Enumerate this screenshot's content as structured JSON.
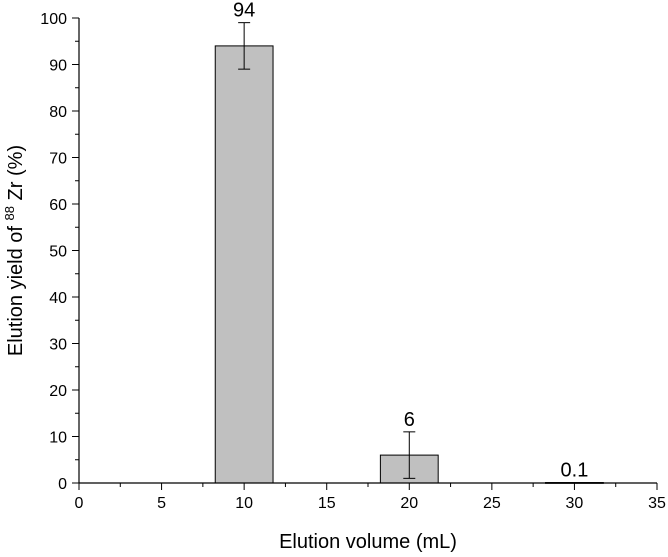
{
  "chart_data": {
    "type": "bar",
    "x": [
      10,
      20,
      30
    ],
    "values": [
      94,
      6,
      0.1
    ],
    "errors": [
      5,
      5,
      0
    ],
    "data_labels": [
      "94",
      "6",
      "0.1"
    ],
    "bar_width": 3.5,
    "xlim": [
      0,
      35
    ],
    "ylim": [
      0,
      100
    ],
    "x_ticks": [
      "0",
      "5",
      "10",
      "15",
      "20",
      "25",
      "30",
      "35"
    ],
    "y_ticks": [
      "0",
      "10",
      "20",
      "30",
      "40",
      "50",
      "60",
      "70",
      "80",
      "90",
      "100"
    ],
    "xlabel": "Elution volume (mL)",
    "ylabel": {
      "prefix": "Elution yield of ",
      "superscript": "88",
      "element": "Zr",
      "suffix": " (%)"
    },
    "grid": false,
    "bar_color": "#c0c0c0",
    "bar_stroke": "#000000"
  }
}
